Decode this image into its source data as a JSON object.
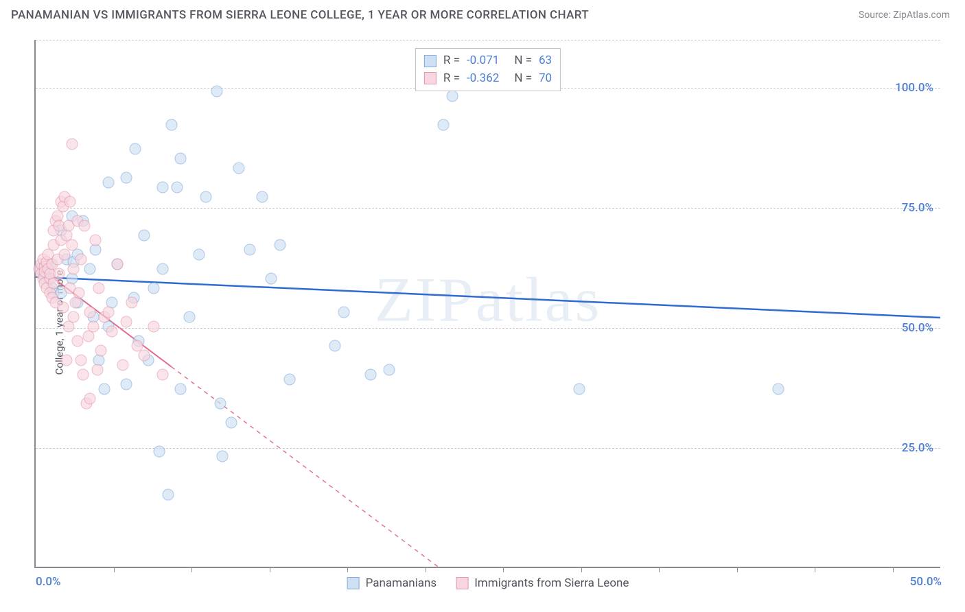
{
  "title": "PANAMANIAN VS IMMIGRANTS FROM SIERRA LEONE COLLEGE, 1 YEAR OR MORE CORRELATION CHART",
  "source": "Source: ZipAtlas.com",
  "watermark": "ZIPatlas",
  "ylabel": "College, 1 year or more",
  "chart": {
    "type": "scatter",
    "xlim": [
      0,
      50
    ],
    "ylim": [
      0,
      110
    ],
    "x_ticks": [
      0,
      50
    ],
    "x_tick_labels": [
      "0.0%",
      "50.0%"
    ],
    "x_minor_ticks": [
      4.3,
      8.6,
      12.9,
      17.2,
      21.5,
      25.8,
      30.1,
      34.4,
      38.7,
      43,
      47.3
    ],
    "y_ticks": [
      25,
      50,
      75,
      100
    ],
    "y_tick_labels": [
      "25.0%",
      "50.0%",
      "75.0%",
      "100.0%"
    ],
    "background_color": "#ffffff",
    "grid_color": "#c9c9ce",
    "axis_color": "#8a8a92",
    "tick_label_color": "#4d7fd6",
    "marker_size": 17,
    "series": [
      {
        "name": "Panamanians",
        "marker_fill": "#cfe0f4",
        "marker_stroke": "#7fa8d9",
        "trend_color": "#2f6bd0",
        "trend_width": 2.5,
        "trend_dash_after_x": 50,
        "R": "-0.071",
        "N": "63",
        "trend": {
          "x1": 0,
          "y1": 60.5,
          "x2": 50,
          "y2": 52
        },
        "points": [
          [
            0.3,
            62
          ],
          [
            0.4,
            61
          ],
          [
            0.5,
            60.5
          ],
          [
            0.6,
            62.5
          ],
          [
            0.7,
            60
          ],
          [
            0.8,
            63
          ],
          [
            0.9,
            58
          ],
          [
            1.0,
            57
          ],
          [
            1.4,
            70
          ],
          [
            1.4,
            57
          ],
          [
            1.7,
            64
          ],
          [
            2.0,
            73
          ],
          [
            2.0,
            60
          ],
          [
            2.1,
            63.5
          ],
          [
            2.3,
            55
          ],
          [
            2.3,
            65
          ],
          [
            2.6,
            72
          ],
          [
            3.0,
            62
          ],
          [
            3.2,
            52
          ],
          [
            3.3,
            66
          ],
          [
            3.5,
            43
          ],
          [
            3.8,
            37
          ],
          [
            4.0,
            80
          ],
          [
            4.0,
            50
          ],
          [
            4.2,
            55
          ],
          [
            4.5,
            63
          ],
          [
            5.0,
            81
          ],
          [
            5.0,
            38
          ],
          [
            5.4,
            56
          ],
          [
            5.5,
            87
          ],
          [
            5.7,
            47
          ],
          [
            6.0,
            69
          ],
          [
            6.2,
            43
          ],
          [
            6.5,
            58
          ],
          [
            6.8,
            24
          ],
          [
            7.0,
            79
          ],
          [
            7.0,
            62
          ],
          [
            7.3,
            15
          ],
          [
            7.5,
            92
          ],
          [
            7.8,
            79
          ],
          [
            8.0,
            85
          ],
          [
            8.0,
            37
          ],
          [
            8.5,
            52
          ],
          [
            9.0,
            65
          ],
          [
            9.4,
            77
          ],
          [
            10.0,
            99
          ],
          [
            10.2,
            34
          ],
          [
            10.3,
            23
          ],
          [
            10.8,
            30
          ],
          [
            11.2,
            83
          ],
          [
            11.8,
            66
          ],
          [
            12.5,
            77
          ],
          [
            13.0,
            60
          ],
          [
            13.5,
            67
          ],
          [
            14.0,
            39
          ],
          [
            16.5,
            46
          ],
          [
            17.0,
            53
          ],
          [
            18.5,
            40
          ],
          [
            19.5,
            41
          ],
          [
            22.5,
            92
          ],
          [
            23.0,
            98
          ],
          [
            30.0,
            37
          ],
          [
            41.0,
            37
          ]
        ]
      },
      {
        "name": "Immigrants from Sierra Leone",
        "marker_fill": "#f7d6df",
        "marker_stroke": "#e595ad",
        "trend_color": "#e56a8b",
        "trend_width": 2,
        "trend_dash_after_x": 7.5,
        "R": "-0.362",
        "N": "70",
        "trend": {
          "x1": 0,
          "y1": 63,
          "x2": 24,
          "y2": -5
        },
        "points": [
          [
            0.2,
            62
          ],
          [
            0.3,
            61
          ],
          [
            0.3,
            63
          ],
          [
            0.4,
            60
          ],
          [
            0.4,
            64
          ],
          [
            0.5,
            59
          ],
          [
            0.5,
            62.5
          ],
          [
            0.5,
            61.5
          ],
          [
            0.6,
            63.5
          ],
          [
            0.6,
            58
          ],
          [
            0.7,
            62
          ],
          [
            0.7,
            65
          ],
          [
            0.8,
            60
          ],
          [
            0.8,
            61
          ],
          [
            0.8,
            57
          ],
          [
            0.9,
            63
          ],
          [
            0.9,
            56
          ],
          [
            1.0,
            70
          ],
          [
            1.0,
            67
          ],
          [
            1.0,
            59
          ],
          [
            1.1,
            72
          ],
          [
            1.1,
            55
          ],
          [
            1.2,
            73
          ],
          [
            1.2,
            64
          ],
          [
            1.3,
            71
          ],
          [
            1.3,
            61
          ],
          [
            1.4,
            76
          ],
          [
            1.4,
            68
          ],
          [
            1.5,
            75
          ],
          [
            1.5,
            54
          ],
          [
            1.6,
            77
          ],
          [
            1.6,
            65
          ],
          [
            1.7,
            69
          ],
          [
            1.7,
            43
          ],
          [
            1.8,
            71
          ],
          [
            1.8,
            50
          ],
          [
            1.9,
            58
          ],
          [
            1.9,
            76
          ],
          [
            2.0,
            88
          ],
          [
            2.0,
            67
          ],
          [
            2.1,
            52
          ],
          [
            2.1,
            62
          ],
          [
            2.2,
            55
          ],
          [
            2.3,
            72
          ],
          [
            2.3,
            47
          ],
          [
            2.4,
            57
          ],
          [
            2.5,
            43
          ],
          [
            2.5,
            64
          ],
          [
            2.6,
            40
          ],
          [
            2.7,
            71
          ],
          [
            2.8,
            34
          ],
          [
            2.9,
            48
          ],
          [
            3.0,
            53
          ],
          [
            3.0,
            35
          ],
          [
            3.2,
            50
          ],
          [
            3.3,
            68
          ],
          [
            3.4,
            41
          ],
          [
            3.5,
            58
          ],
          [
            3.6,
            45
          ],
          [
            3.8,
            52
          ],
          [
            4.0,
            53
          ],
          [
            4.2,
            49
          ],
          [
            4.5,
            63
          ],
          [
            4.8,
            42
          ],
          [
            5.0,
            51
          ],
          [
            5.3,
            55
          ],
          [
            5.6,
            46
          ],
          [
            6.0,
            44
          ],
          [
            6.5,
            50
          ],
          [
            7.0,
            40
          ]
        ]
      }
    ]
  },
  "legend_stats": {
    "label_color": "#555560",
    "value_color": "#4d7fd6"
  }
}
